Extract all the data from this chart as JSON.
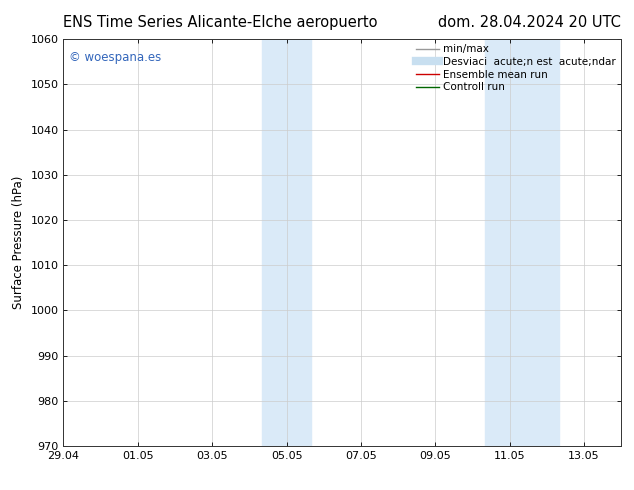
{
  "title_left": "ENS Time Series Alicante-Elche aeropuerto",
  "title_right": "dom. 28.04.2024 20 UTC",
  "ylabel": "Surface Pressure (hPa)",
  "ylim": [
    970,
    1060
  ],
  "yticks": [
    970,
    980,
    990,
    1000,
    1010,
    1020,
    1030,
    1040,
    1050,
    1060
  ],
  "xtick_labels": [
    "29.04",
    "01.05",
    "03.05",
    "05.05",
    "07.05",
    "09.05",
    "11.05",
    "13.05"
  ],
  "xtick_positions": [
    0,
    2,
    4,
    6,
    8,
    10,
    12,
    14
  ],
  "xlim": [
    0,
    15.0
  ],
  "shaded_bands": [
    {
      "xstart": 5.33,
      "xend": 6.67
    },
    {
      "xstart": 11.33,
      "xend": 13.33
    }
  ],
  "shade_color": "#daeaf8",
  "background_color": "#ffffff",
  "watermark_text": "© woespana.es",
  "watermark_color": "#3366bb",
  "legend_label_1": "min/max",
  "legend_label_2": "Desviaci  acute;n est  acute;ndar",
  "legend_label_3": "Ensemble mean run",
  "legend_label_4": "Controll run",
  "legend_color_1": "#999999",
  "legend_color_2": "#c8dff0",
  "legend_color_3": "#cc0000",
  "legend_color_4": "#006600",
  "title_fontsize": 10.5,
  "axis_fontsize": 8.5,
  "tick_fontsize": 8,
  "legend_fontsize": 7.5
}
